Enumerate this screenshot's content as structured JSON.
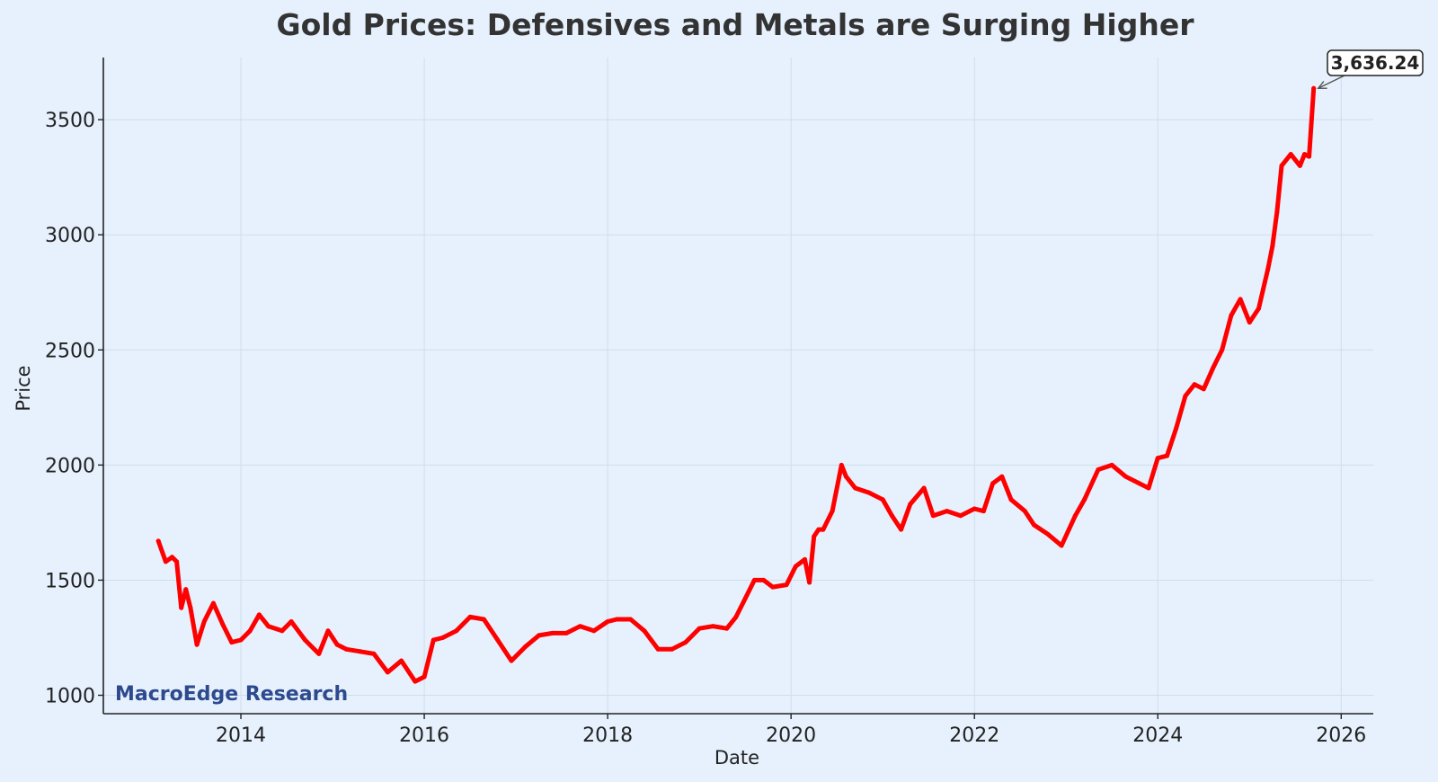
{
  "chart_data": {
    "type": "line",
    "title": "Gold Prices: Defensives and Metals are Surging Higher",
    "xlabel": "Date",
    "ylabel": "Price",
    "xlim": [
      2012.5,
      2026.35
    ],
    "ylim": [
      920,
      3770
    ],
    "xticks": [
      2014,
      2016,
      2018,
      2020,
      2022,
      2024,
      2026
    ],
    "yticks": [
      1000,
      1500,
      2000,
      2500,
      3000,
      3500
    ],
    "grid": true,
    "watermark": "MacroEdge Research",
    "annotation": {
      "label": "3,636.24",
      "x": 2025.7,
      "y": 3636.24
    },
    "series": [
      {
        "name": "Gold",
        "color": "#ff0000",
        "x": [
          2013.1,
          2013.18,
          2013.25,
          2013.3,
          2013.35,
          2013.4,
          2013.45,
          2013.52,
          2013.6,
          2013.7,
          2013.8,
          2013.9,
          2014.0,
          2014.1,
          2014.2,
          2014.3,
          2014.45,
          2014.55,
          2014.7,
          2014.85,
          2014.95,
          2015.05,
          2015.15,
          2015.3,
          2015.45,
          2015.6,
          2015.75,
          2015.9,
          2016.0,
          2016.1,
          2016.2,
          2016.35,
          2016.5,
          2016.65,
          2016.8,
          2016.95,
          2017.1,
          2017.25,
          2017.4,
          2017.55,
          2017.7,
          2017.85,
          2018.0,
          2018.1,
          2018.25,
          2018.4,
          2018.55,
          2018.7,
          2018.85,
          2019.0,
          2019.15,
          2019.3,
          2019.4,
          2019.5,
          2019.6,
          2019.7,
          2019.8,
          2019.95,
          2020.05,
          2020.15,
          2020.2,
          2020.25,
          2020.3,
          2020.35,
          2020.45,
          2020.55,
          2020.6,
          2020.7,
          2020.85,
          2021.0,
          2021.1,
          2021.2,
          2021.3,
          2021.45,
          2021.55,
          2021.7,
          2021.85,
          2022.0,
          2022.1,
          2022.2,
          2022.3,
          2022.4,
          2022.55,
          2022.65,
          2022.8,
          2022.95,
          2023.1,
          2023.2,
          2023.35,
          2023.5,
          2023.65,
          2023.8,
          2023.9,
          2024.0,
          2024.1,
          2024.2,
          2024.3,
          2024.4,
          2024.5,
          2024.6,
          2024.7,
          2024.8,
          2024.9,
          2025.0,
          2025.1,
          2025.2,
          2025.25,
          2025.3,
          2025.35,
          2025.45,
          2025.55,
          2025.6,
          2025.65,
          2025.7
        ],
        "values": [
          1670,
          1580,
          1600,
          1580,
          1380,
          1460,
          1380,
          1220,
          1320,
          1400,
          1310,
          1230,
          1240,
          1280,
          1350,
          1300,
          1280,
          1320,
          1240,
          1180,
          1280,
          1220,
          1200,
          1190,
          1180,
          1100,
          1150,
          1060,
          1080,
          1240,
          1250,
          1280,
          1340,
          1330,
          1240,
          1150,
          1210,
          1260,
          1270,
          1270,
          1300,
          1280,
          1320,
          1330,
          1330,
          1280,
          1200,
          1200,
          1230,
          1290,
          1300,
          1290,
          1340,
          1420,
          1500,
          1500,
          1470,
          1480,
          1560,
          1590,
          1490,
          1690,
          1720,
          1720,
          1800,
          2000,
          1950,
          1900,
          1880,
          1850,
          1780,
          1720,
          1830,
          1900,
          1780,
          1800,
          1780,
          1810,
          1800,
          1920,
          1950,
          1850,
          1800,
          1740,
          1700,
          1650,
          1780,
          1850,
          1980,
          2000,
          1950,
          1920,
          1900,
          2030,
          2040,
          2160,
          2300,
          2350,
          2330,
          2420,
          2500,
          2650,
          2720,
          2620,
          2680,
          2850,
          2950,
          3100,
          3300,
          3350,
          3300,
          3350,
          3340,
          3636.24
        ]
      }
    ]
  }
}
